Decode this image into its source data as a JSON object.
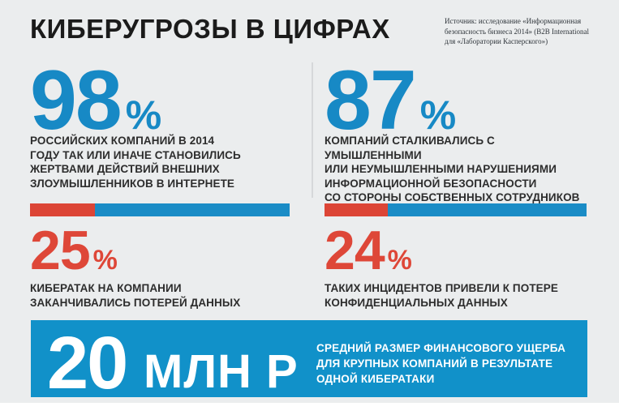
{
  "title": "КИБЕРУГРОЗЫ В ЦИФРАХ",
  "source_note": "Источник: исследование «Информационная\nбезопасность бизнеса 2014» (B2B International\nдля «Лаборатории Касперского»)",
  "colors": {
    "accent_blue": "#1789c5",
    "accent_red": "#de4738",
    "band_blue": "#1191c9",
    "background": "#ebedee",
    "text_dark": "#2d2d2d"
  },
  "stats": [
    {
      "value": "98",
      "percent_sign": "%",
      "description": "РОССИЙСКИХ КОМПАНИЙ В 2014\nГОДУ ТАК ИЛИ ИНАЧЕ СТАНОВИЛИСЬ\nЖЕРТВАМИ ДЕЙСТВИЙ ВНЕШНИХ\nЗЛОУМЫШЛЕННИКОВ В ИНТЕРНЕТЕ",
      "bar": {
        "red_percent": 25,
        "blue_percent": 75
      },
      "sub": {
        "value": "25",
        "percent_sign": "%",
        "description": "КИБЕРАТАК НА КОМПАНИИ\nЗАКАНЧИВАЛИСЬ ПОТЕРЕЙ ДАННЫХ"
      }
    },
    {
      "value": "87",
      "percent_sign": "%",
      "description": "КОМПАНИЙ СТАЛКИВАЛИСЬ С УМЫШЛЕННЫМИ\nИЛИ НЕУМЫШЛЕННЫМИ НАРУШЕНИЯМИ\nИНФОРМАЦИОННОЙ БЕЗОПАСНОСТИ\nСО СТОРОНЫ СОБСТВЕННЫХ СОТРУДНИКОВ",
      "bar": {
        "red_percent": 24,
        "blue_percent": 76
      },
      "sub": {
        "value": "24",
        "percent_sign": "%",
        "description": "ТАКИХ ИНЦИДЕНТОВ ПРИВЕЛИ К ПОТЕРЕ\nКОНФИДЕНЦИАЛЬНЫХ ДАННЫХ"
      }
    }
  ],
  "footer": {
    "value": "20",
    "unit": "МЛН Р",
    "description": "СРЕДНИЙ РАЗМЕР ФИНАНСОВОГО УЩЕРБА\nДЛЯ КРУПНЫХ КОМПАНИЙ В РЕЗУЛЬТАТЕ\nОДНОЙ КИБЕРАТАКИ"
  },
  "chart_data": {
    "type": "bar",
    "title": "КИБЕРУГРОЗЫ В ЦИФРАХ",
    "source": "Источник: исследование «Информационная безопасность бизнеса 2014» (B2B International для «Лаборатории Касперского»)",
    "legend_position": "none",
    "grid": false,
    "items": [
      {
        "value": 98,
        "unit": "%",
        "label": "российских компаний в 2014 году так или иначе становились жертвами действий внешних злоумышленников в интернете"
      },
      {
        "value": 87,
        "unit": "%",
        "label": "компаний сталкивались с умышленными или неумышленными нарушениями информационной безопасности со стороны собственных сотрудников"
      },
      {
        "value": 25,
        "unit": "%",
        "label": "кибератак на компании заканчивались потерей данных"
      },
      {
        "value": 24,
        "unit": "%",
        "label": "таких инцидентов привели к потере конфиденциальных данных"
      },
      {
        "value": 20,
        "unit": "млн р",
        "label": "средний размер финансового ущерба для крупных компаний в результате одной кибератаки"
      }
    ]
  }
}
